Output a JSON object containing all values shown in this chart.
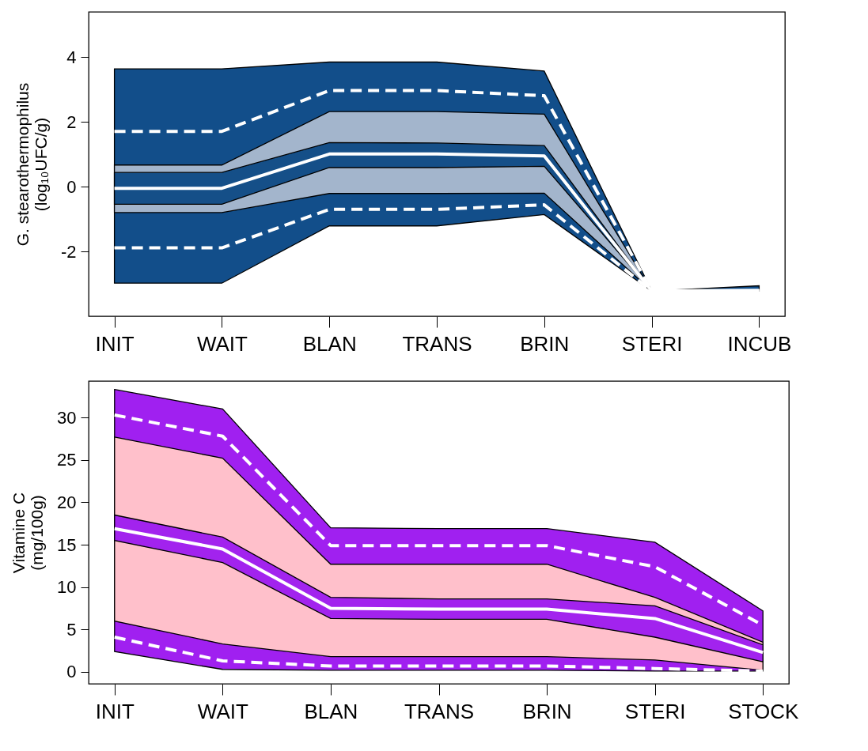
{
  "chart_data": [
    {
      "type": "line",
      "ylabel": "G. stearothermophilus\n(log₁₀UFC/g)",
      "categories": [
        "INIT",
        "WAIT",
        "BLAN",
        "TRANS",
        "BRIN",
        "STERI",
        "INCUB"
      ],
      "ylim": [
        -4,
        5.4
      ],
      "yticks": [
        -2,
        0,
        2,
        4
      ],
      "grid": false,
      "series": [
        {
          "color": "#ffffff",
          "line_style": "dashed",
          "values": [
            1.71,
            1.71,
            2.97,
            2.97,
            2.81,
            -3.22,
            -3.22
          ],
          "lower": [
            -2.98,
            -2.98,
            -1.21,
            -1.21,
            -0.86,
            -3.22,
            -3.22
          ],
          "upper": [
            3.64,
            3.64,
            3.85,
            3.85,
            3.57,
            -3.22,
            -3.06
          ]
        },
        {
          "color": "#ffffff",
          "line_style": "dashed",
          "values": [
            -1.89,
            -1.89,
            -0.7,
            -0.7,
            -0.56,
            -3.22,
            -3.22
          ],
          "lower": [
            -0.8,
            -0.8,
            -0.21,
            -0.21,
            -0.2,
            -3.22,
            -3.22
          ],
          "upper": [
            0.67,
            0.67,
            2.32,
            2.32,
            2.24,
            -3.22,
            -3.22
          ]
        },
        {
          "color": "#ffffff",
          "line_style": "solid",
          "values": [
            -0.05,
            -0.05,
            1.01,
            1.01,
            0.95,
            -3.22,
            -3.2
          ],
          "lower": [
            -0.54,
            -0.54,
            0.59,
            0.59,
            0.63,
            -3.22,
            -3.22
          ],
          "upper": [
            0.44,
            0.44,
            1.36,
            1.35,
            1.27,
            -3.22,
            -3.22
          ]
        }
      ]
    },
    {
      "type": "line",
      "ylabel": "Vitamine C\n(mg/100g)",
      "categories": [
        "INIT",
        "WAIT",
        "BLAN",
        "TRANS",
        "BRIN",
        "STERI",
        "STOCK"
      ],
      "ylim": [
        -1.4,
        34.3
      ],
      "yticks": [
        0,
        5,
        10,
        15,
        20,
        25,
        30
      ],
      "grid": false,
      "series": [
        {
          "color": "#ffffff",
          "line_style": "dashed",
          "values": [
            30.3,
            27.8,
            14.9,
            14.9,
            14.9,
            12.4,
            5.5
          ],
          "lower": [
            2.4,
            0.3,
            0.2,
            0.2,
            0.2,
            0.1,
            0.1
          ],
          "upper": [
            33.3,
            31.0,
            17.0,
            16.9,
            16.9,
            15.3,
            7.2
          ]
        },
        {
          "color": "#ffffff",
          "line_style": "dashed",
          "values": [
            4.1,
            1.3,
            0.7,
            0.7,
            0.7,
            0.4,
            0.1
          ],
          "lower": [
            6.0,
            3.3,
            1.8,
            1.8,
            1.8,
            1.4,
            0.2
          ],
          "upper": [
            27.7,
            25.2,
            12.7,
            12.7,
            12.7,
            8.8,
            3.5
          ]
        },
        {
          "color": "#ffffff",
          "line_style": "solid",
          "values": [
            16.9,
            14.5,
            7.5,
            7.4,
            7.4,
            6.3,
            2.3
          ],
          "lower": [
            15.5,
            12.9,
            6.3,
            6.2,
            6.2,
            4.1,
            1.2
          ],
          "upper": [
            18.5,
            15.9,
            8.8,
            8.6,
            8.6,
            7.8,
            3.2
          ]
        }
      ]
    }
  ]
}
